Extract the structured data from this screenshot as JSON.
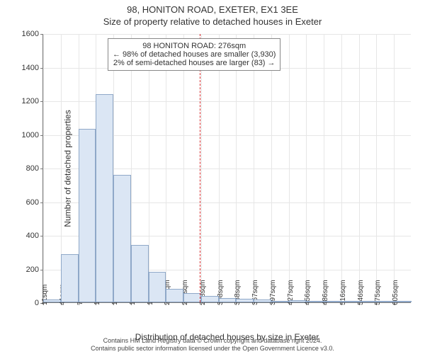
{
  "title": "98, HONITON ROAD, EXETER, EX1 3EE",
  "subtitle": "Size of property relative to detached houses in Exeter",
  "y_axis_label": "Number of detached properties",
  "x_axis_label": "Distribution of detached houses by size in Exeter",
  "footer_line1": "Contains HM Land Registry data © Crown copyright and database right 2024.",
  "footer_line2": "Contains public sector information licensed under the Open Government Licence v3.0.",
  "chart": {
    "type": "histogram",
    "x_categories": [
      "11sqm",
      "41sqm",
      "70sqm",
      "100sqm",
      "130sqm",
      "160sqm",
      "189sqm",
      "219sqm",
      "249sqm",
      "278sqm",
      "308sqm",
      "338sqm",
      "367sqm",
      "397sqm",
      "427sqm",
      "456sqm",
      "486sqm",
      "516sqm",
      "546sqm",
      "575sqm",
      "605sqm"
    ],
    "x_bin_starts_sqm": [
      11,
      41,
      70,
      100,
      130,
      160,
      189,
      219,
      249,
      278,
      308,
      338,
      367,
      397,
      427,
      456,
      486,
      516,
      546,
      575,
      605
    ],
    "values": [
      15,
      285,
      1030,
      1240,
      760,
      340,
      180,
      80,
      55,
      40,
      25,
      20,
      15,
      10,
      12,
      5,
      4,
      3,
      2,
      1,
      1
    ],
    "bar_fill": "#dbe6f4",
    "bar_border": "#8fa8c8",
    "background_color": "#ffffff",
    "grid_color": "#e6e6e6",
    "axis_color": "#777777",
    "ylim": [
      0,
      1600
    ],
    "ytick_step": 200,
    "y_ticks": [
      0,
      200,
      400,
      600,
      800,
      1000,
      1200,
      1400,
      1600
    ],
    "reference_line": {
      "value_sqm": 276,
      "color": "#d62728",
      "dash": true
    },
    "callout": {
      "line1": "98 HONITON ROAD: 276sqm",
      "line2": "← 98% of detached houses are smaller (3,930)",
      "line3": "2% of semi-detached houses are larger (83) →",
      "border_color": "#888888",
      "fontsize": 11
    },
    "title_fontsize": 13,
    "label_fontsize": 12,
    "tick_fontsize": 11
  }
}
